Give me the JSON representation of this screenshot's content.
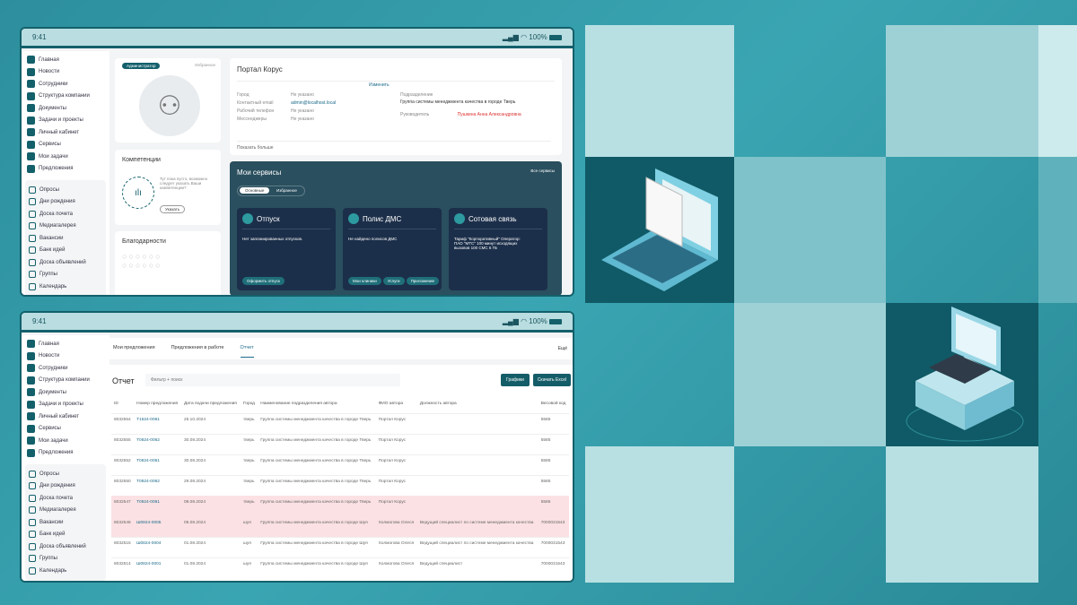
{
  "status": {
    "time": "9:41",
    "battery": "100%"
  },
  "sidebar": {
    "main": [
      "Главная",
      "Новости",
      "Сотрудники",
      "Структура компании",
      "Документы",
      "Задачи и проекты",
      "Личный кабинет",
      "Сервисы",
      "Мои задачи",
      "Предложения"
    ],
    "secondary": [
      "Опросы",
      "Дни рождения",
      "Доска почета",
      "Медиагалерея",
      "Вакансии",
      "Банк идей",
      "Доска объявлений",
      "Группы",
      "Календарь"
    ]
  },
  "profile": {
    "role_badge": "Администратор",
    "favorite": "Избранное",
    "name": "Портал Корус",
    "edit": "Изменить",
    "fields": [
      {
        "label": "Город",
        "value": "Не указано"
      },
      {
        "label": "Контактный email",
        "value": "admin@localhost.local"
      },
      {
        "label": "Рабочий телефон",
        "value": "Не указано"
      },
      {
        "label": "Мессенджеры",
        "value": "Не указано"
      }
    ],
    "department_label": "Подразделение",
    "department": "Группа системы менеджмента качества в городе Тверь",
    "manager_label": "Руководитель",
    "manager": "Пушкина Анна Александровна",
    "show_more": "Показать больше"
  },
  "competencies": {
    "title": "Компетенции",
    "empty": "Тут пока пусто, возможно следует указать Ваши компетенции?",
    "button": "Указать"
  },
  "thanks": {
    "title": "Благодарности"
  },
  "services": {
    "title": "Мои сервисы",
    "all": "Все сервисы",
    "tabs": [
      "Основные",
      "Избранное"
    ],
    "cards": [
      {
        "title": "Отпуск",
        "text": "Нет запланированных отпусков.",
        "buttons": [
          "Оформить отпуск"
        ]
      },
      {
        "title": "Полис ДМС",
        "text": "Не найдено полисов ДМС",
        "buttons": [
          "Мои клиники",
          "Услуги",
          "Приложение"
        ]
      },
      {
        "title": "Сотовая связь",
        "text": "Тариф \"Корпоративный\" Оператор: ПАО \"МТС\" 100 минут исходящих вызовов 100 СМС 6 ГБ",
        "buttons": []
      }
    ]
  },
  "report": {
    "tabs": [
      "Мои предложения",
      "Предложения в работе",
      "Отчет"
    ],
    "more": "Ещё",
    "title": "Отчет",
    "search_placeholder": "Фильтр + поиск",
    "charts_button": "Графики",
    "excel_button": "Скачать Excel",
    "columns": [
      "ID",
      "Номер предложения",
      "Дата подачи предложения",
      "Город",
      "Наименование подразделения автора",
      "ФИО автора",
      "Должность автора",
      "Весовой код"
    ],
    "rows": [
      [
        "8032554",
        "Т1524-0061",
        "25.10.2024",
        "тверь",
        "Группа системы менеджмента качества в городе Тверь",
        "Портал Корус",
        "",
        "5585"
      ],
      [
        "8032555",
        "Т0824-0062",
        "30.08.2024",
        "тверь",
        "Группа системы менеджмента качества в городе Тверь",
        "Портал Корус",
        "",
        "5585"
      ],
      [
        "8032552",
        "Т0824-0061",
        "30.08.2024",
        "тверь",
        "Группа системы менеджмента качества в городе Тверь",
        "Портал Корус",
        "",
        "5585"
      ],
      [
        "8032550",
        "Т0824-0062",
        "29.08.2024",
        "тверь",
        "Группа системы менеджмента качества в городе Тверь",
        "Портал Корус",
        "",
        "5585"
      ],
      [
        "8032547",
        "Т0824-0061",
        "08.08.2024",
        "тверь",
        "Группа системы менеджмента качества в городе Тверь",
        "Портал Корус",
        "",
        "5585"
      ],
      [
        "8032546",
        "Ш0824-0005",
        "05.08.2024",
        "шуя",
        "Группа системы менеджмента качества в городе Шуя",
        "Холмогова Олеся",
        "Ведущий специалист по системе менеджмента качества",
        "7000031543"
      ],
      [
        "8032515",
        "Ш0824-0004",
        "01.08.2024",
        "шуя",
        "Группа системы менеджмента качества в городе Шуя",
        "Холмогова Олеся",
        "Ведущий специалист по системе менеджмента качества",
        "7000031543"
      ],
      [
        "8032514",
        "Ш0824-0001",
        "01.08.2024",
        "шуя",
        "Группа системы менеджмента качества в городе Шуя",
        "Холмогова Олеся",
        "Ведущий специалист",
        "7000031543"
      ]
    ],
    "highlighted_rows": [
      4,
      5
    ],
    "highlight_color": "#fbe1e3"
  },
  "colors": {
    "accent": "#13606b",
    "background": "#3aa5b2"
  }
}
